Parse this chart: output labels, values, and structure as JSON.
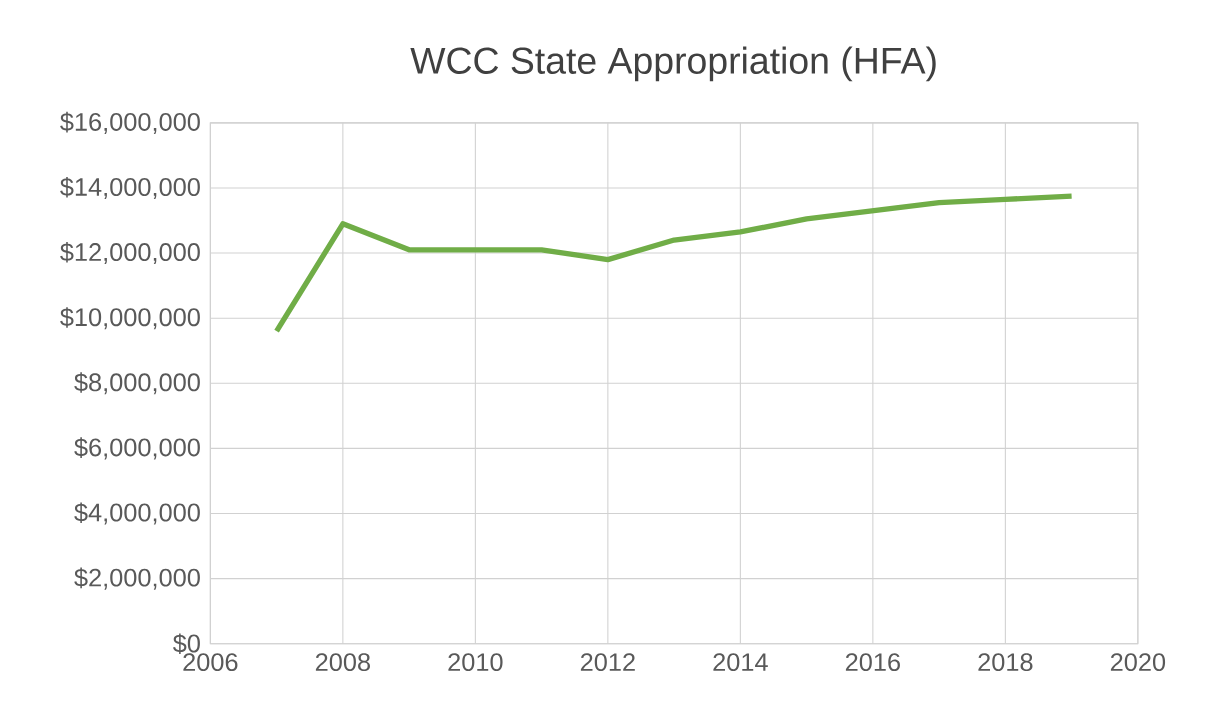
{
  "chart_data": {
    "type": "line",
    "title": "WCC State Appropriation (HFA)",
    "x": [
      2007,
      2008,
      2009,
      2010,
      2011,
      2012,
      2013,
      2014,
      2015,
      2016,
      2017,
      2018,
      2019
    ],
    "series": [
      {
        "color": "#70ad47",
        "values": [
          9600000,
          12900000,
          12100000,
          12100000,
          12100000,
          11800000,
          12400000,
          12650000,
          13050000,
          13300000,
          13550000,
          13650000,
          13750000
        ]
      }
    ],
    "xlim": [
      2006,
      2020
    ],
    "xticks": [
      2006,
      2008,
      2010,
      2012,
      2014,
      2016,
      2018,
      2020
    ],
    "ylim": [
      0,
      16000000
    ],
    "yticks": [
      {
        "value": 0,
        "label": "$0"
      },
      {
        "value": 2000000,
        "label": "$2,000,000"
      },
      {
        "value": 4000000,
        "label": "$4,000,000"
      },
      {
        "value": 6000000,
        "label": "$6,000,000"
      },
      {
        "value": 8000000,
        "label": "$8,000,000"
      },
      {
        "value": 10000000,
        "label": "$10,000,000"
      },
      {
        "value": 12000000,
        "label": "$12,000,000"
      },
      {
        "value": 14000000,
        "label": "$14,000,000"
      },
      {
        "value": 16000000,
        "label": "$16,000,000"
      }
    ],
    "grid": true,
    "marker": "none",
    "line_style": "solid"
  }
}
